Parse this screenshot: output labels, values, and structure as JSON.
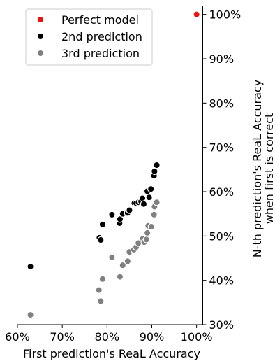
{
  "chart_data": {
    "type": "scatter",
    "xlabel": "First prediction's ReaL Accuracy",
    "ylabel_lines": [
      "N-th prediction's ReaL Accuracy",
      "when first is correct"
    ],
    "xlim": [
      60,
      102
    ],
    "ylim": [
      30,
      102
    ],
    "x_ticks": [
      60,
      70,
      80,
      90,
      100
    ],
    "x_tick_labels": [
      "60%",
      "70%",
      "80%",
      "90%",
      "100%"
    ],
    "y_ticks": [
      30,
      40,
      50,
      60,
      70,
      80,
      90,
      100
    ],
    "y_tick_labels": [
      "30%",
      "40%",
      "50%",
      "60%",
      "70%",
      "80%",
      "90%",
      "100%"
    ],
    "grid": false,
    "legend_position": "top-left",
    "series": [
      {
        "name": "Perfect model",
        "color": "#ee1111",
        "x": [
          100.0
        ],
        "y": [
          100.0
        ]
      },
      {
        "name": "2nd prediction",
        "color": "#000000",
        "x": [
          62.9,
          78.3,
          78.6,
          79.0,
          81.1,
          82.8,
          82.9,
          83.5,
          84.6,
          85.0,
          86.1,
          86.5,
          87.0,
          87.6,
          87.9,
          88.2,
          88.8,
          89.0,
          89.4,
          89.8,
          90.5,
          90.6,
          91.1
        ],
        "y": [
          43.1,
          49.6,
          49.1,
          52.6,
          54.8,
          52.9,
          53.8,
          55.0,
          55.2,
          55.8,
          57.4,
          57.4,
          57.6,
          57.8,
          58.5,
          57.2,
          60.0,
          60.1,
          58.7,
          60.6,
          63.6,
          64.6,
          66.0
        ]
      },
      {
        "name": "3rd prediction",
        "color": "#808080",
        "x": [
          62.9,
          78.2,
          78.6,
          79.0,
          81.1,
          82.9,
          83.5,
          84.6,
          85.0,
          86.0,
          86.5,
          87.0,
          88.0,
          88.3,
          88.8,
          89.0,
          89.2,
          89.9,
          90.5,
          90.6,
          91.1
        ],
        "y": [
          32.2,
          37.8,
          35.3,
          40.3,
          45.2,
          40.8,
          43.4,
          44.3,
          46.4,
          46.9,
          47.5,
          48.4,
          49.4,
          48.6,
          49.2,
          50.7,
          52.3,
          52.1,
          54.8,
          56.6,
          57.6
        ]
      }
    ]
  }
}
